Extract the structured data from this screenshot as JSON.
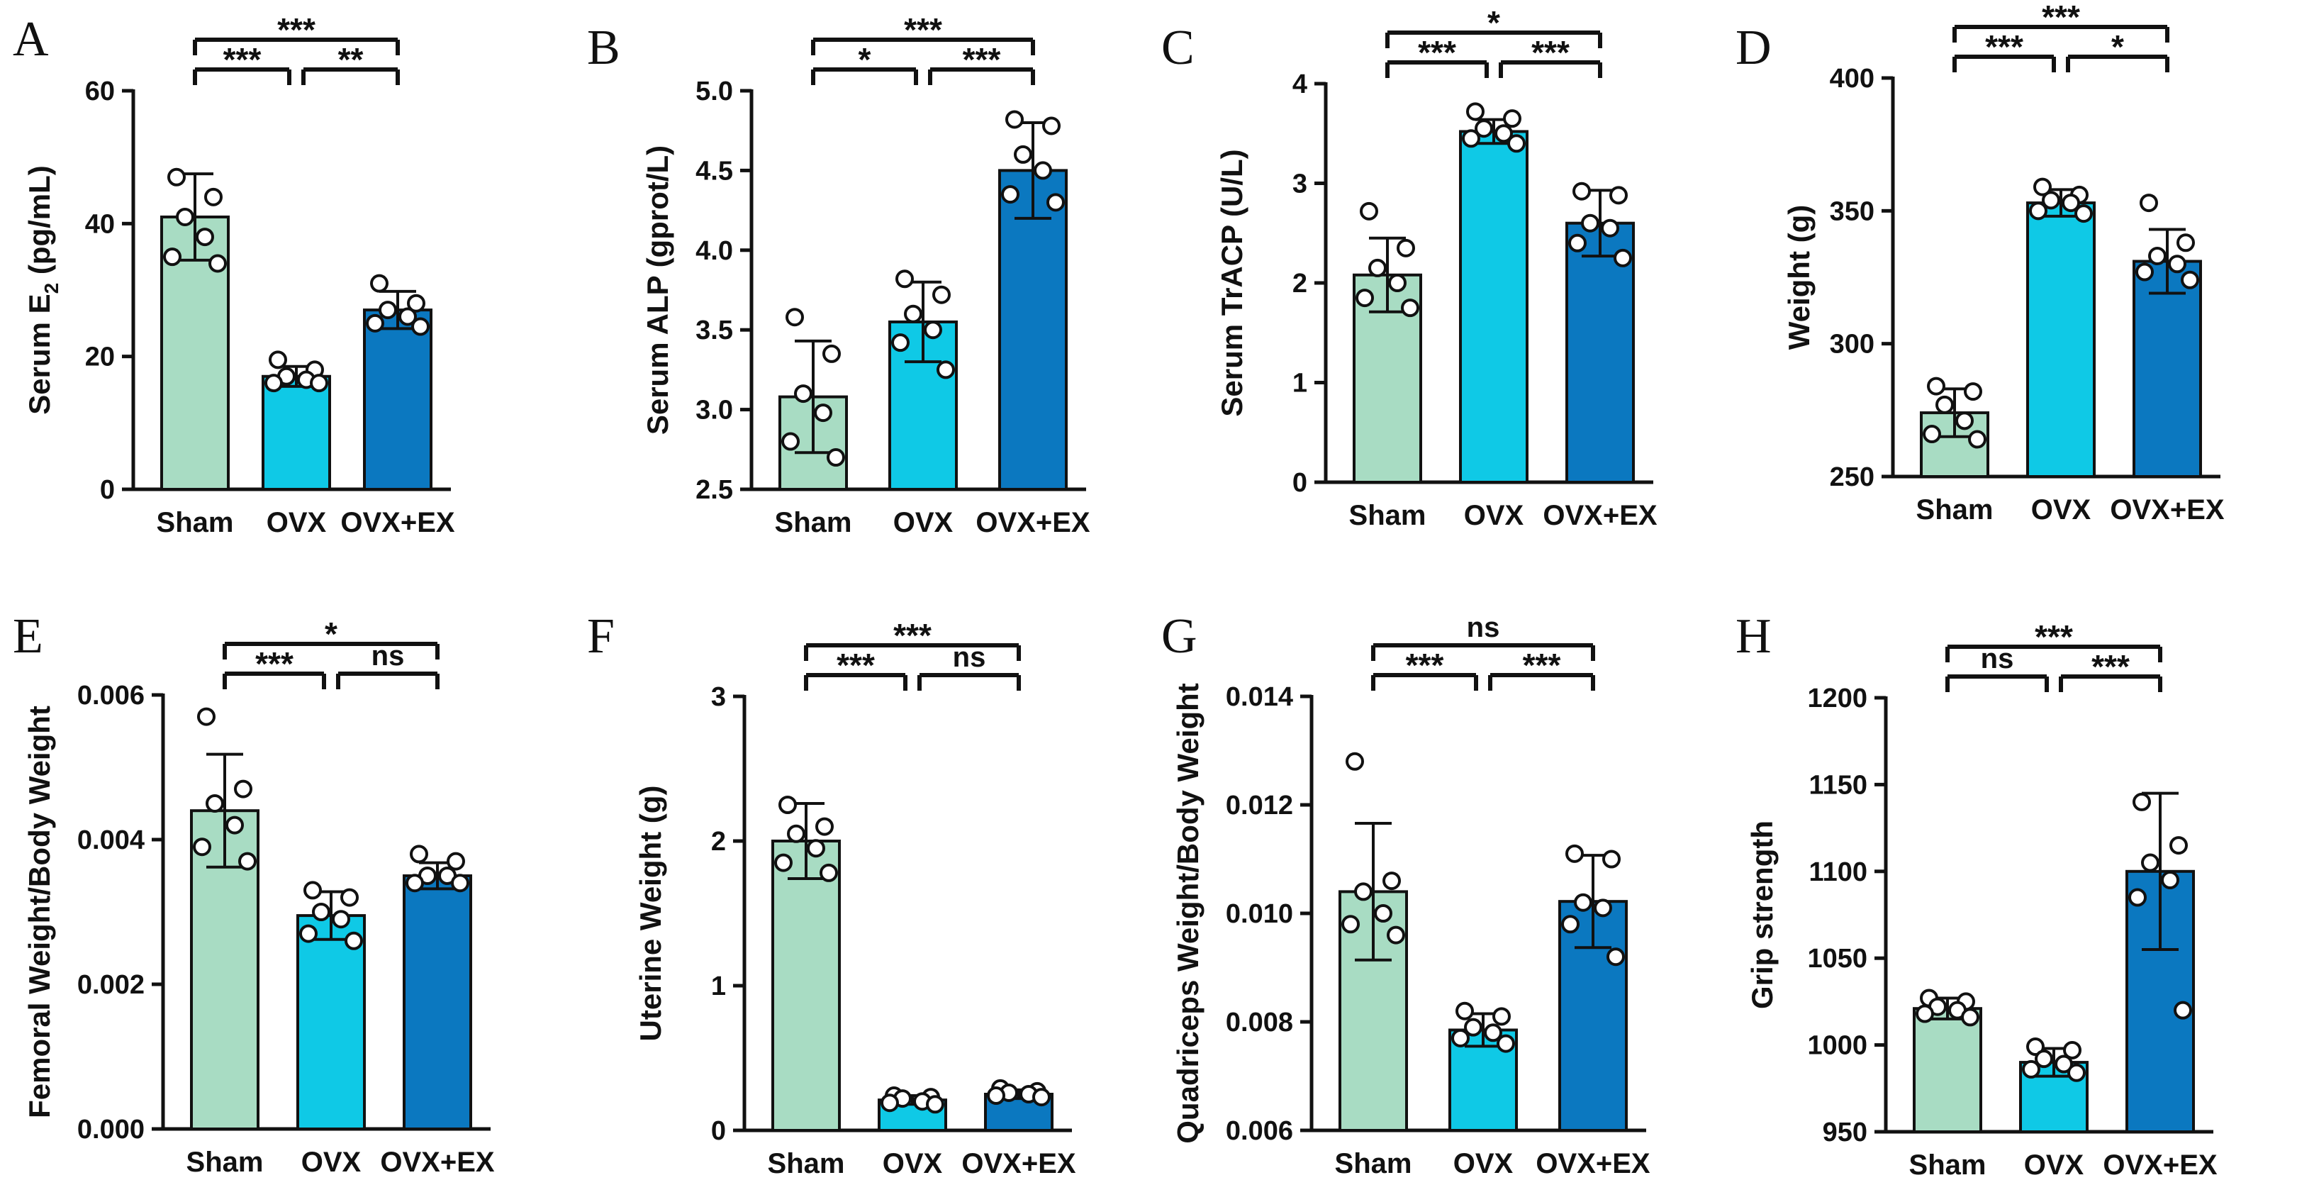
{
  "colors": {
    "sham": "#a8dcc3",
    "ovx": "#0fc9e6",
    "ovxex": "#0b78c0",
    "stroke": "#111111",
    "dot": "#ffffff"
  },
  "chart_data": [
    {
      "panel": "A",
      "type": "bar",
      "categories": [
        "Sham",
        "OVX",
        "OVX+EX"
      ],
      "ylabel": "Serum E2 (pg/mL)",
      "ylabel_main": "Serum E",
      "ylabel_sub": "2",
      "ylabel_tail": " (pg/mL)",
      "ylim": [
        0,
        60
      ],
      "ticks": [
        0,
        20,
        40,
        60
      ],
      "tick_labels": [
        "0",
        "20",
        "40",
        "60"
      ],
      "means": [
        41,
        17,
        27
      ],
      "sd": [
        6.5,
        1.5,
        2.8
      ],
      "points": [
        [
          47,
          44,
          41,
          38,
          35,
          34
        ],
        [
          19.5,
          18,
          17,
          16.5,
          16,
          16
        ],
        [
          31,
          28,
          27,
          26,
          25,
          24.5
        ]
      ],
      "sig": [
        {
          "from": 0,
          "to": 2,
          "level": 2,
          "text": "***"
        },
        {
          "from": 0,
          "to": 1,
          "level": 1,
          "text": "***"
        },
        {
          "from": 1,
          "to": 2,
          "level": 1,
          "text": "**"
        }
      ]
    },
    {
      "panel": "B",
      "type": "bar",
      "categories": [
        "Sham",
        "OVX",
        "OVX+EX"
      ],
      "ylabel": "Serum ALP (gprot/L)",
      "ylim": [
        2.5,
        5.0
      ],
      "ticks": [
        2.5,
        3.0,
        3.5,
        4.0,
        4.5,
        5.0
      ],
      "tick_labels": [
        "2.5",
        "3.0",
        "3.5",
        "4.0",
        "4.5",
        "5.0"
      ],
      "means": [
        3.08,
        3.55,
        4.5
      ],
      "sd": [
        0.35,
        0.25,
        0.3
      ],
      "points": [
        [
          3.58,
          3.35,
          3.1,
          2.98,
          2.8,
          2.7
        ],
        [
          3.82,
          3.72,
          3.6,
          3.5,
          3.42,
          3.25
        ],
        [
          4.82,
          4.78,
          4.6,
          4.5,
          4.35,
          4.3
        ]
      ],
      "sig": [
        {
          "from": 0,
          "to": 2,
          "level": 2,
          "text": "***"
        },
        {
          "from": 0,
          "to": 1,
          "level": 1,
          "text": "*"
        },
        {
          "from": 1,
          "to": 2,
          "level": 1,
          "text": "***"
        }
      ]
    },
    {
      "panel": "C",
      "type": "bar",
      "categories": [
        "Sham",
        "OVX",
        "OVX+EX"
      ],
      "ylabel": "Serum TrACP (U/L)",
      "ylim": [
        0,
        4
      ],
      "ticks": [
        0,
        1,
        2,
        3,
        4
      ],
      "tick_labels": [
        "0",
        "1",
        "2",
        "3",
        "4"
      ],
      "means": [
        2.08,
        3.52,
        2.6
      ],
      "sd": [
        0.37,
        0.12,
        0.33
      ],
      "points": [
        [
          2.72,
          2.35,
          2.15,
          2.0,
          1.85,
          1.75
        ],
        [
          3.72,
          3.65,
          3.55,
          3.5,
          3.45,
          3.4
        ],
        [
          2.92,
          2.88,
          2.6,
          2.55,
          2.4,
          2.25
        ]
      ],
      "sig": [
        {
          "from": 0,
          "to": 2,
          "level": 2,
          "text": "*"
        },
        {
          "from": 0,
          "to": 1,
          "level": 1,
          "text": "***"
        },
        {
          "from": 1,
          "to": 2,
          "level": 1,
          "text": "***"
        }
      ]
    },
    {
      "panel": "D",
      "type": "bar",
      "categories": [
        "Sham",
        "OVX",
        "OVX+EX"
      ],
      "ylabel": "Weight (g)",
      "ylim": [
        250,
        400
      ],
      "ticks": [
        250,
        300,
        350,
        400
      ],
      "tick_labels": [
        "250",
        "300",
        "350",
        "400"
      ],
      "means": [
        274,
        353,
        331
      ],
      "sd": [
        9,
        5,
        12
      ],
      "points": [
        [
          284,
          282,
          277,
          271,
          266,
          264
        ],
        [
          359,
          356,
          354,
          353,
          350,
          349
        ],
        [
          353,
          338,
          333,
          330,
          327,
          324
        ]
      ],
      "sig": [
        {
          "from": 0,
          "to": 2,
          "level": 2,
          "text": "***"
        },
        {
          "from": 0,
          "to": 1,
          "level": 1,
          "text": "***"
        },
        {
          "from": 1,
          "to": 2,
          "level": 1,
          "text": "*"
        }
      ]
    },
    {
      "panel": "E",
      "type": "bar",
      "categories": [
        "Sham",
        "OVX",
        "OVX+EX"
      ],
      "ylabel": "Femoral Weight/Body Weight",
      "ylim": [
        0,
        0.006
      ],
      "ticks": [
        0,
        0.002,
        0.004,
        0.006
      ],
      "tick_labels": [
        "0.000",
        "0.002",
        "0.004",
        "0.006"
      ],
      "means": [
        0.0044,
        0.00295,
        0.0035
      ],
      "sd": [
        0.00078,
        0.00033,
        0.00018
      ],
      "points": [
        [
          0.0057,
          0.0047,
          0.0045,
          0.0042,
          0.0039,
          0.0037
        ],
        [
          0.0033,
          0.0032,
          0.003,
          0.0029,
          0.0027,
          0.0026
        ],
        [
          0.0038,
          0.0037,
          0.0035,
          0.0035,
          0.0034,
          0.0034
        ]
      ],
      "sig": [
        {
          "from": 0,
          "to": 2,
          "level": 2,
          "text": "*"
        },
        {
          "from": 0,
          "to": 1,
          "level": 1,
          "text": "***"
        },
        {
          "from": 1,
          "to": 2,
          "level": 1,
          "text": "ns"
        }
      ]
    },
    {
      "panel": "F",
      "type": "bar",
      "categories": [
        "Sham",
        "OVX",
        "OVX+EX"
      ],
      "ylabel": "Uterine Weight (g)",
      "ylim": [
        0,
        3
      ],
      "ticks": [
        0,
        1,
        2,
        3
      ],
      "tick_labels": [
        "0",
        "1",
        "2",
        "3"
      ],
      "means": [
        2.0,
        0.21,
        0.25
      ],
      "sd": [
        0.26,
        0.03,
        0.03
      ],
      "points": [
        [
          2.25,
          2.1,
          2.05,
          1.95,
          1.85,
          1.78
        ],
        [
          0.24,
          0.23,
          0.22,
          0.2,
          0.19,
          0.18
        ],
        [
          0.29,
          0.27,
          0.26,
          0.25,
          0.24,
          0.23
        ]
      ],
      "sig": [
        {
          "from": 0,
          "to": 2,
          "level": 2,
          "text": "***"
        },
        {
          "from": 0,
          "to": 1,
          "level": 1,
          "text": "***"
        },
        {
          "from": 1,
          "to": 2,
          "level": 1,
          "text": "ns"
        }
      ]
    },
    {
      "panel": "G",
      "type": "bar",
      "categories": [
        "Sham",
        "OVX",
        "OVX+EX"
      ],
      "ylabel": "Quadriceps Weight/Body Weight",
      "ylim": [
        0.006,
        0.014
      ],
      "ticks": [
        0.006,
        0.008,
        0.01,
        0.012,
        0.014
      ],
      "tick_labels": [
        "0.006",
        "0.008",
        "0.010",
        "0.012",
        "0.014"
      ],
      "means": [
        0.0104,
        0.00785,
        0.01022
      ],
      "sd": [
        0.00126,
        0.0003,
        0.00085
      ],
      "points": [
        [
          0.0128,
          0.0106,
          0.0104,
          0.01,
          0.0098,
          0.0096
        ],
        [
          0.0082,
          0.0081,
          0.0079,
          0.0078,
          0.0077,
          0.0076
        ],
        [
          0.0111,
          0.011,
          0.0102,
          0.0101,
          0.0098,
          0.0092
        ]
      ],
      "sig": [
        {
          "from": 0,
          "to": 2,
          "level": 2,
          "text": "ns"
        },
        {
          "from": 0,
          "to": 1,
          "level": 1,
          "text": "***"
        },
        {
          "from": 1,
          "to": 2,
          "level": 1,
          "text": "***"
        }
      ]
    },
    {
      "panel": "H",
      "type": "bar",
      "categories": [
        "Sham",
        "OVX",
        "OVX+EX"
      ],
      "ylabel": "Grip strength",
      "ylim": [
        950,
        1200
      ],
      "ticks": [
        950,
        1000,
        1050,
        1100,
        1150,
        1200
      ],
      "tick_labels": [
        "950",
        "1000",
        "1050",
        "1100",
        "1150",
        "1200"
      ],
      "means": [
        1021,
        990,
        1100
      ],
      "sd": [
        6,
        8,
        45
      ],
      "points": [
        [
          1027,
          1025,
          1022,
          1020,
          1018,
          1016
        ],
        [
          999,
          997,
          992,
          989,
          986,
          984
        ],
        [
          1140,
          1115,
          1105,
          1095,
          1085,
          1020
        ]
      ],
      "sig": [
        {
          "from": 0,
          "to": 2,
          "level": 2,
          "text": "***"
        },
        {
          "from": 0,
          "to": 1,
          "level": 1,
          "text": "ns"
        },
        {
          "from": 1,
          "to": 2,
          "level": 1,
          "text": "***"
        }
      ]
    }
  ]
}
